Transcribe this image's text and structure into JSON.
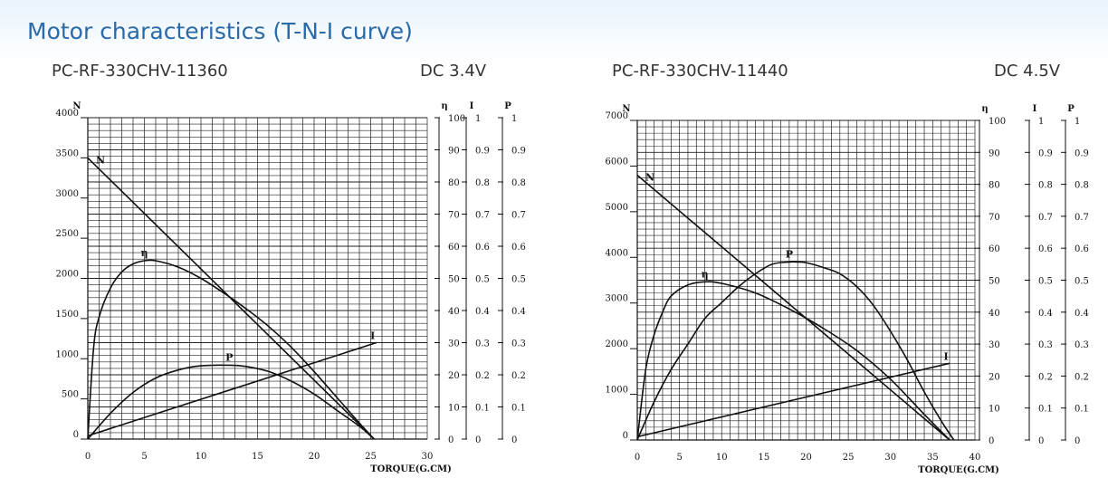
{
  "page": {
    "title": "Motor characteristics (T-N-I curve)"
  },
  "chart_data": [
    {
      "type": "line",
      "model": "PC-RF-330CHV-11360",
      "voltage": "DC 3.4V",
      "xlabel": "TORQUE(G.CM)",
      "xlim": [
        0,
        30
      ],
      "x_ticks": [
        0,
        5,
        10,
        15,
        20,
        25,
        30
      ],
      "axes": {
        "N": {
          "label": "N",
          "lim": [
            0,
            4000
          ],
          "ticks": [
            0,
            500,
            1000,
            1500,
            2000,
            2500,
            3000,
            3500,
            4000
          ]
        },
        "eta": {
          "label": "η",
          "lim": [
            0,
            100
          ],
          "ticks": [
            0,
            10,
            20,
            30,
            40,
            50,
            60,
            70,
            80,
            90,
            100
          ]
        },
        "I": {
          "label": "I",
          "lim": [
            0,
            1
          ],
          "ticks": [
            0,
            0.1,
            0.2,
            0.3,
            0.4,
            0.5,
            0.6,
            0.7,
            0.8,
            0.9,
            1
          ]
        },
        "P": {
          "label": "P",
          "lim": [
            0,
            1
          ],
          "ticks": [
            0,
            0.1,
            0.2,
            0.3,
            0.4,
            0.5,
            0.6,
            0.7,
            0.8,
            0.9,
            1
          ]
        }
      },
      "grid": true,
      "series": [
        {
          "name": "N",
          "axis": "N",
          "x": [
            0,
            25.3
          ],
          "y": [
            3500,
            0
          ]
        },
        {
          "name": "η",
          "axis": "eta",
          "x": [
            0,
            0.5,
            1,
            2,
            3,
            4,
            5,
            6,
            8,
            10,
            12,
            14,
            16,
            18,
            20,
            22,
            24,
            25.3
          ],
          "y": [
            0,
            28,
            38,
            47,
            52,
            54.5,
            55.5,
            55.5,
            53.5,
            50,
            45.5,
            40.5,
            35,
            28.5,
            21,
            13,
            5,
            0
          ]
        },
        {
          "name": "P",
          "axis": "P",
          "x": [
            0,
            2,
            4,
            6,
            8,
            10,
            12.5,
            14,
            16,
            18,
            20,
            22,
            24,
            25.3
          ],
          "y": [
            0,
            0.08,
            0.145,
            0.19,
            0.215,
            0.228,
            0.23,
            0.226,
            0.21,
            0.18,
            0.14,
            0.09,
            0.04,
            0
          ]
        },
        {
          "name": "I",
          "axis": "I",
          "x": [
            0,
            25.5
          ],
          "y": [
            0.01,
            0.3
          ]
        }
      ]
    },
    {
      "type": "line",
      "model": "PC-RF-330CHV-11440",
      "voltage": "DC 4.5V",
      "xlabel": "TORQUE(G.CM)",
      "xlim": [
        0,
        40
      ],
      "x_ticks": [
        0,
        5,
        10,
        15,
        20,
        25,
        30,
        35,
        40
      ],
      "axes": {
        "N": {
          "label": "N",
          "lim": [
            0,
            7000
          ],
          "ticks": [
            0,
            1000,
            2000,
            3000,
            4000,
            5000,
            6000,
            7000
          ]
        },
        "eta": {
          "label": "η",
          "lim": [
            0,
            100
          ],
          "ticks": [
            0,
            10,
            20,
            30,
            40,
            50,
            60,
            70,
            80,
            90,
            100
          ]
        },
        "I": {
          "label": "I",
          "lim": [
            0,
            1
          ],
          "ticks": [
            0,
            0.1,
            0.2,
            0.3,
            0.4,
            0.5,
            0.6,
            0.7,
            0.8,
            0.9,
            1
          ]
        },
        "P": {
          "label": "P",
          "lim": [
            0,
            1
          ],
          "ticks": [
            0,
            0.1,
            0.2,
            0.3,
            0.4,
            0.5,
            0.6,
            0.7,
            0.8,
            0.9,
            1
          ]
        }
      },
      "grid": true,
      "series": [
        {
          "name": "N",
          "axis": "N",
          "x": [
            0,
            37
          ],
          "y": [
            5800,
            0
          ]
        },
        {
          "name": "η",
          "axis": "eta",
          "x": [
            0,
            1,
            2,
            3,
            4,
            6,
            8,
            10,
            14,
            18,
            22,
            26,
            30,
            34,
            37
          ],
          "y": [
            0,
            22,
            33,
            40,
            45,
            48.5,
            49.5,
            49,
            46,
            41,
            35,
            28,
            19,
            8,
            0
          ]
        },
        {
          "name": "P",
          "axis": "P",
          "x": [
            0,
            2,
            4,
            6,
            8,
            10,
            12,
            14,
            16,
            18,
            19,
            20,
            22,
            24,
            26,
            28,
            30,
            32,
            34,
            36,
            37.5
          ],
          "y": [
            0,
            0.12,
            0.22,
            0.3,
            0.38,
            0.43,
            0.48,
            0.52,
            0.55,
            0.557,
            0.557,
            0.555,
            0.54,
            0.52,
            0.48,
            0.42,
            0.34,
            0.25,
            0.15,
            0.06,
            0
          ]
        },
        {
          "name": "I",
          "axis": "I",
          "x": [
            0,
            37
          ],
          "y": [
            0.01,
            0.24
          ]
        }
      ]
    }
  ]
}
